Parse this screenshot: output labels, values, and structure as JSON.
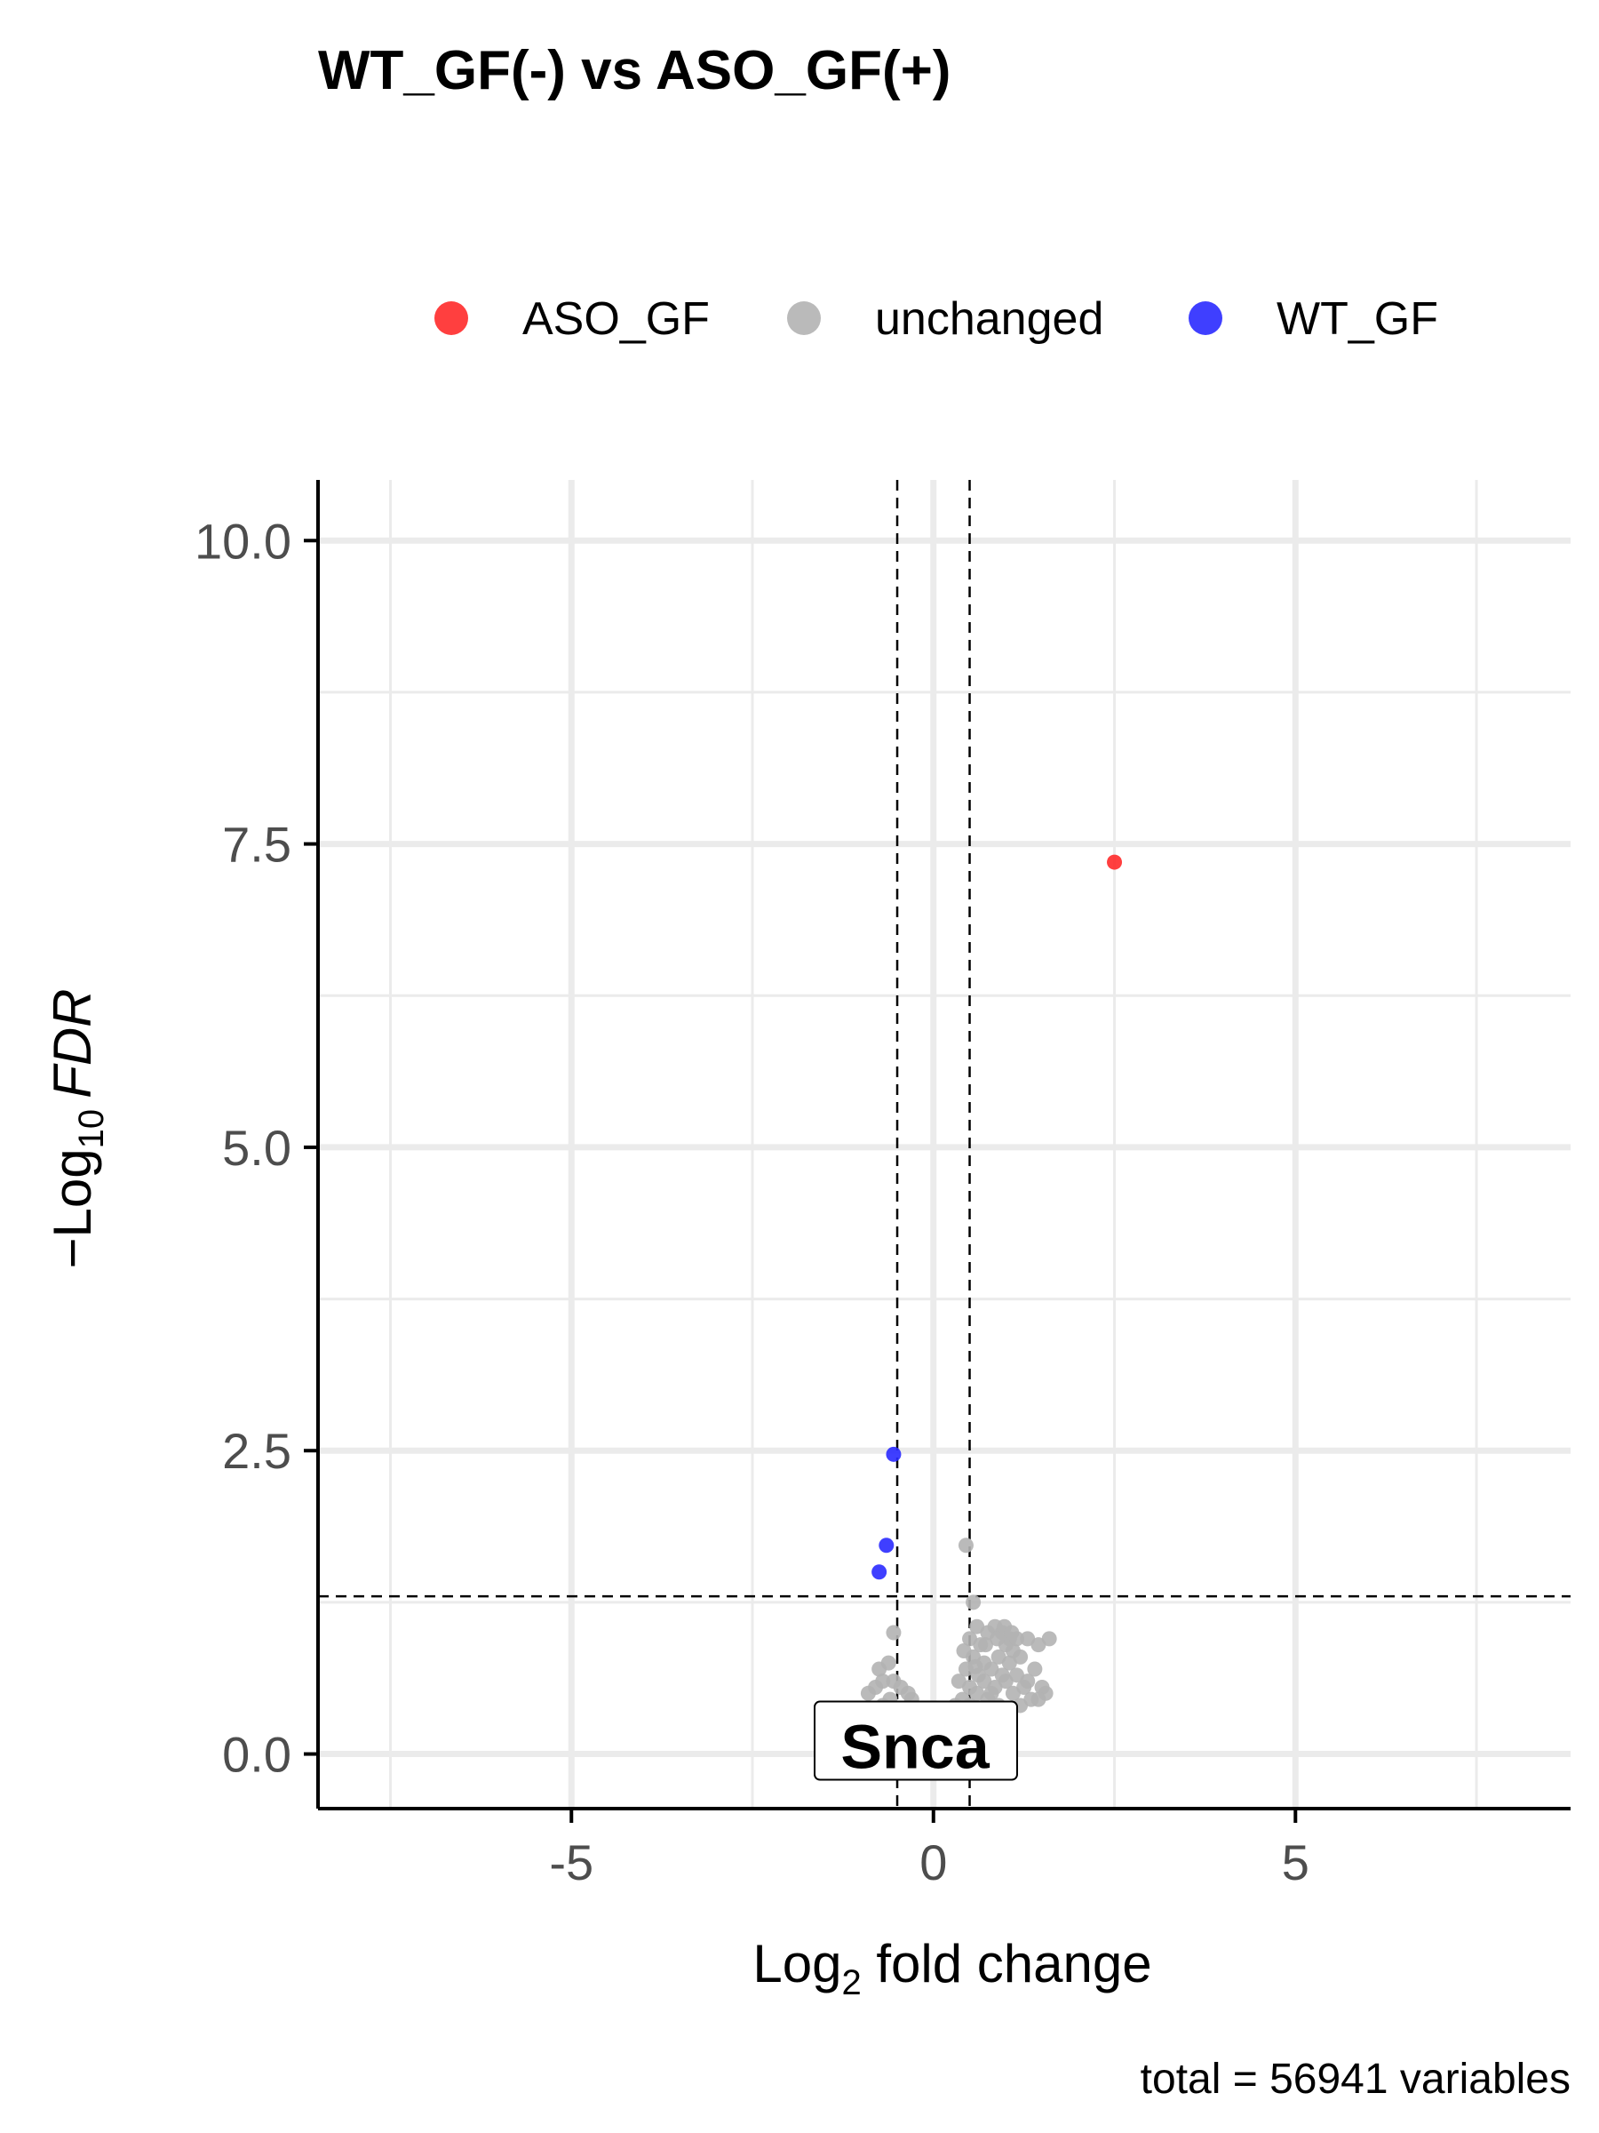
{
  "chart_data": {
    "type": "scatter",
    "title": "WT_GF(-) vs ASO_GF(+)",
    "xlabel_main": "Log",
    "xlabel_sub": "2",
    "xlabel_rest": " fold change",
    "ylabel_prefix": "−Log",
    "ylabel_sub": "10",
    "ylabel_italic": "FDR",
    "caption": "total = 56941 variables",
    "xlim": [
      -8.5,
      8.8
    ],
    "ylim": [
      -0.45,
      10.5
    ],
    "x_ticks": [
      -5,
      0,
      5
    ],
    "x_tick_labels": [
      "-5",
      "0",
      "5"
    ],
    "y_ticks": [
      0,
      2.5,
      5,
      7.5,
      10
    ],
    "y_tick_labels": [
      "0.0",
      "2.5",
      "5.0",
      "7.5",
      "10.0"
    ],
    "grid": true,
    "legend_position": "top",
    "fc_cutoff": [
      -0.5,
      0.5
    ],
    "fdr_cutoff": 1.3,
    "colors": {
      "ASO_GF": "#ff2a2a",
      "unchanged": "#b3b3b3",
      "WT_GF": "#2a2aff"
    },
    "legend": [
      {
        "name": "ASO_GF",
        "color": "#ff2a2a"
      },
      {
        "name": "unchanged",
        "color": "#b3b3b3"
      },
      {
        "name": "WT_GF",
        "color": "#2a2aff"
      }
    ],
    "series": [
      {
        "name": "ASO_GF",
        "points": [
          [
            2.5,
            7.35
          ]
        ]
      },
      {
        "name": "WT_GF",
        "points": [
          [
            -0.55,
            2.47
          ],
          [
            -0.65,
            1.72
          ],
          [
            -0.75,
            1.5
          ]
        ]
      },
      {
        "name": "unchanged",
        "points": [
          [
            0.45,
            1.72
          ],
          [
            0.55,
            1.25
          ],
          [
            -0.55,
            1.0
          ],
          [
            -0.62,
            0.75
          ],
          [
            -0.75,
            0.7
          ],
          [
            -0.7,
            0.6
          ],
          [
            -0.8,
            0.55
          ],
          [
            -0.9,
            0.5
          ],
          [
            -0.6,
            0.45
          ],
          [
            -0.7,
            0.4
          ],
          [
            -0.5,
            0.35
          ],
          [
            -0.4,
            0.3
          ],
          [
            -0.3,
            0.25
          ],
          [
            -0.5,
            0.2
          ],
          [
            -0.6,
            0.15
          ],
          [
            -0.35,
            0.1
          ],
          [
            -0.25,
            0.2
          ],
          [
            -0.45,
            0.55
          ],
          [
            -0.55,
            0.6
          ],
          [
            -0.35,
            0.5
          ],
          [
            0.3,
            0.2
          ],
          [
            0.4,
            0.3
          ],
          [
            0.5,
            0.4
          ],
          [
            0.6,
            0.5
          ],
          [
            0.7,
            0.6
          ],
          [
            0.8,
            0.7
          ],
          [
            0.9,
            0.8
          ],
          [
            1.0,
            0.9
          ],
          [
            0.35,
            0.6
          ],
          [
            0.45,
            0.7
          ],
          [
            0.55,
            0.8
          ],
          [
            0.65,
            0.9
          ],
          [
            0.75,
            1.0
          ],
          [
            0.85,
            1.05
          ],
          [
            0.95,
            1.0
          ],
          [
            1.05,
            0.95
          ],
          [
            1.1,
            0.85
          ],
          [
            1.2,
            0.8
          ],
          [
            1.3,
            0.6
          ],
          [
            1.4,
            0.7
          ],
          [
            1.5,
            0.55
          ],
          [
            1.55,
            0.5
          ],
          [
            1.6,
            0.95
          ],
          [
            1.45,
            0.45
          ],
          [
            0.5,
            0.95
          ],
          [
            0.6,
            1.05
          ],
          [
            0.7,
            0.75
          ],
          [
            0.8,
            0.5
          ],
          [
            0.9,
            0.4
          ],
          [
            1.0,
            0.6
          ],
          [
            1.1,
            0.5
          ],
          [
            1.2,
            0.4
          ],
          [
            1.15,
            0.65
          ],
          [
            1.25,
            0.55
          ],
          [
            1.35,
            0.45
          ],
          [
            0.4,
            0.45
          ],
          [
            0.5,
            0.55
          ],
          [
            0.6,
            0.3
          ],
          [
            0.7,
            0.35
          ],
          [
            0.8,
            0.25
          ],
          [
            0.9,
            0.2
          ],
          [
            1.0,
            0.3
          ],
          [
            0.25,
            0.15
          ],
          [
            0.35,
            0.35
          ],
          [
            0.55,
            0.2
          ],
          [
            0.65,
            0.15
          ],
          [
            0.75,
            0.45
          ],
          [
            0.85,
            0.55
          ],
          [
            0.95,
            0.65
          ],
          [
            1.05,
            0.75
          ],
          [
            1.15,
            0.95
          ],
          [
            0.42,
            0.85
          ],
          [
            0.62,
            0.65
          ],
          [
            0.72,
            0.9
          ],
          [
            0.88,
            0.95
          ],
          [
            1.3,
            0.95
          ],
          [
            -0.2,
            0.15
          ],
          [
            -0.45,
            0.05
          ],
          [
            -0.3,
            0.45
          ],
          [
            1.45,
            0.9
          ],
          [
            0.3,
            0.4
          ],
          [
            0.98,
            1.05
          ],
          [
            1.08,
            1.0
          ],
          [
            0.58,
            0.72
          ]
        ]
      }
    ],
    "annotations": [
      {
        "text": "Snca",
        "x": -0.1,
        "y": 0.28
      }
    ]
  }
}
